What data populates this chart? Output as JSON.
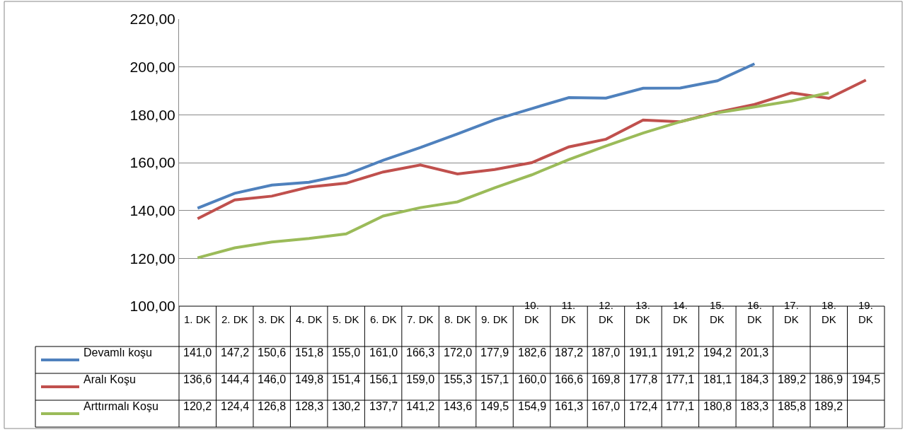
{
  "chart_data": {
    "type": "line",
    "categories": [
      "1. DK",
      "2. DK",
      "3. DK",
      "4. DK",
      "5. DK",
      "6. DK",
      "7. DK",
      "8. DK",
      "9. DK",
      "10. DK",
      "11. DK",
      "12. DK",
      "13. DK",
      "14. DK",
      "15. DK",
      "16. DK",
      "17. DK",
      "18. DK",
      "19. DK"
    ],
    "series": [
      {
        "name": "Devamlı koşu",
        "color": "#4f81bd",
        "values": [
          141.0,
          147.2,
          150.6,
          151.8,
          155.0,
          161.0,
          166.3,
          172.0,
          177.9,
          182.6,
          187.2,
          187.0,
          191.1,
          191.2,
          194.2,
          201.3,
          null,
          null,
          null
        ],
        "value_labels": [
          "141,0",
          "147,2",
          "150,6",
          "151,8",
          "155,0",
          "161,0",
          "166,3",
          "172,0",
          "177,9",
          "182,6",
          "187,2",
          "187,0",
          "191,1",
          "191,2",
          "194,2",
          "201,3",
          null,
          null,
          null
        ]
      },
      {
        "name": "Aralı Koşu",
        "color": "#c0504d",
        "values": [
          136.6,
          144.4,
          146.0,
          149.8,
          151.4,
          156.1,
          159.0,
          155.3,
          157.1,
          160.0,
          166.6,
          169.8,
          177.8,
          177.1,
          181.1,
          184.3,
          189.2,
          186.9,
          194.5
        ],
        "value_labels": [
          "136,6",
          "144,4",
          "146,0",
          "149,8",
          "151,4",
          "156,1",
          "159,0",
          "155,3",
          "157,1",
          "160,0",
          "166,6",
          "169,8",
          "177,8",
          "177,1",
          "181,1",
          "184,3",
          "189,2",
          "186,9",
          "194,5"
        ]
      },
      {
        "name": "Arttırmalı Koşu",
        "color": "#9bbb59",
        "values": [
          120.2,
          124.4,
          126.8,
          128.3,
          130.2,
          137.7,
          141.2,
          143.6,
          149.5,
          154.9,
          161.3,
          167.0,
          172.4,
          177.1,
          180.8,
          183.3,
          185.8,
          189.2,
          null
        ],
        "value_labels": [
          "120,2",
          "124,4",
          "126,8",
          "128,3",
          "130,2",
          "137,7",
          "141,2",
          "143,6",
          "149,5",
          "154,9",
          "161,3",
          "167,0",
          "172,4",
          "177,1",
          "180,8",
          "183,3",
          "185,8",
          "189,2",
          null
        ]
      }
    ],
    "ylim": [
      100,
      220
    ],
    "yticks": [
      {
        "value": 100,
        "label": "100,00"
      },
      {
        "value": 120,
        "label": "120,00"
      },
      {
        "value": 140,
        "label": "140,00"
      },
      {
        "value": 160,
        "label": "160,00"
      },
      {
        "value": 180,
        "label": "180,00"
      },
      {
        "value": 200,
        "label": "200,00"
      },
      {
        "value": 220,
        "label": "220,00"
      }
    ],
    "grid": "y",
    "legend": "bottom",
    "marker": "none",
    "line_style": "solid"
  }
}
